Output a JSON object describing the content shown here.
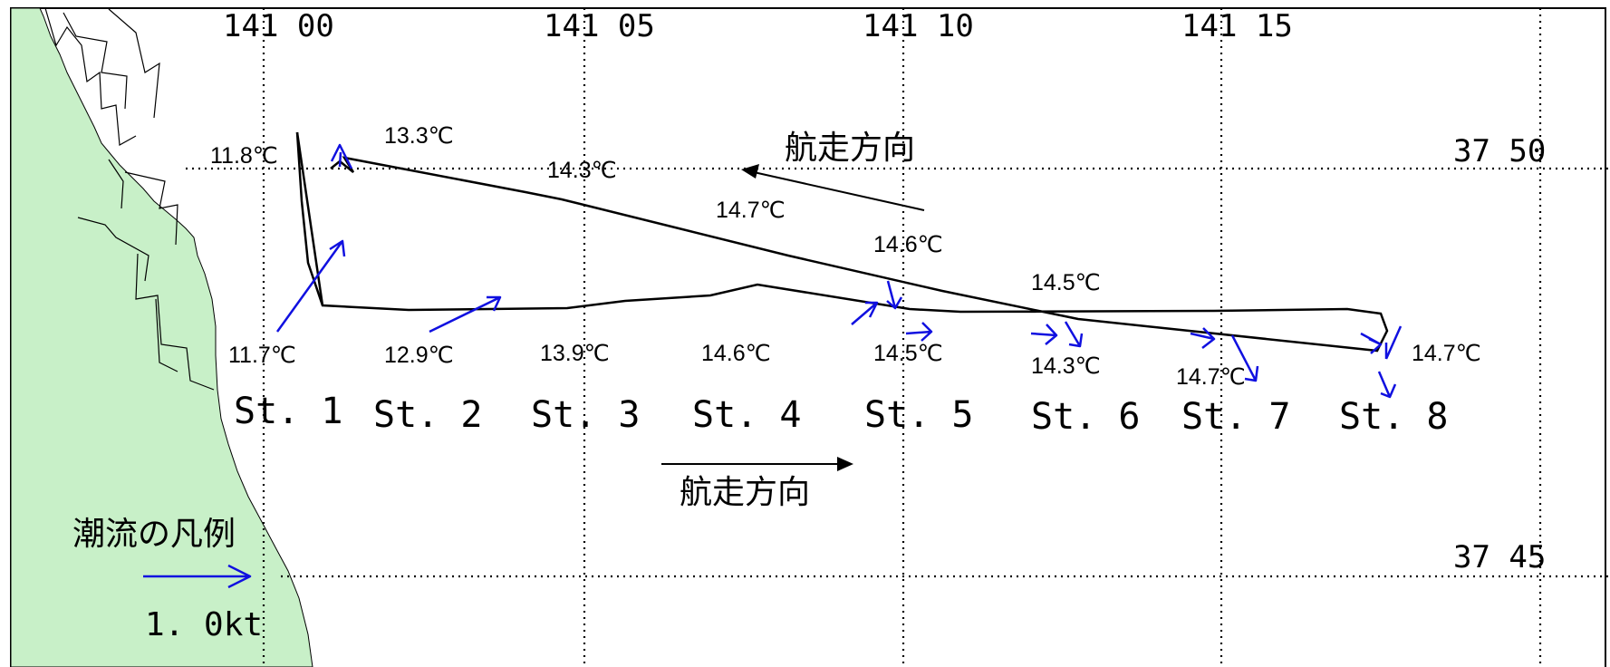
{
  "map": {
    "longitude_labels": [
      "141 00",
      "141 05",
      "141 10",
      "141 15"
    ],
    "latitude_labels": [
      "37 50",
      "37 45"
    ],
    "stations": [
      "St. 1",
      "St. 2",
      "St. 3",
      "St. 4",
      "St. 5",
      "St. 6",
      "St. 7",
      "St. 8"
    ],
    "temperatures_outbound": [
      "11.7℃",
      "12.9℃",
      "13.9℃",
      "14.6℃",
      "14.5℃",
      "14.3℃",
      "14.7℃",
      "14.7℃"
    ],
    "temperatures_return": [
      "11.8℃",
      "13.3℃",
      "14.3℃",
      "14.7℃",
      "14.6℃",
      "14.5℃"
    ],
    "direction_label_top": "航走方向",
    "direction_label_bottom": "航走方向",
    "legend": {
      "title": "潮流の凡例",
      "value": "1. 0kt"
    },
    "colors": {
      "land": "#c8f0c8",
      "current_arrow": "#1010e0",
      "track": "#000000",
      "grid": "#000000"
    }
  }
}
